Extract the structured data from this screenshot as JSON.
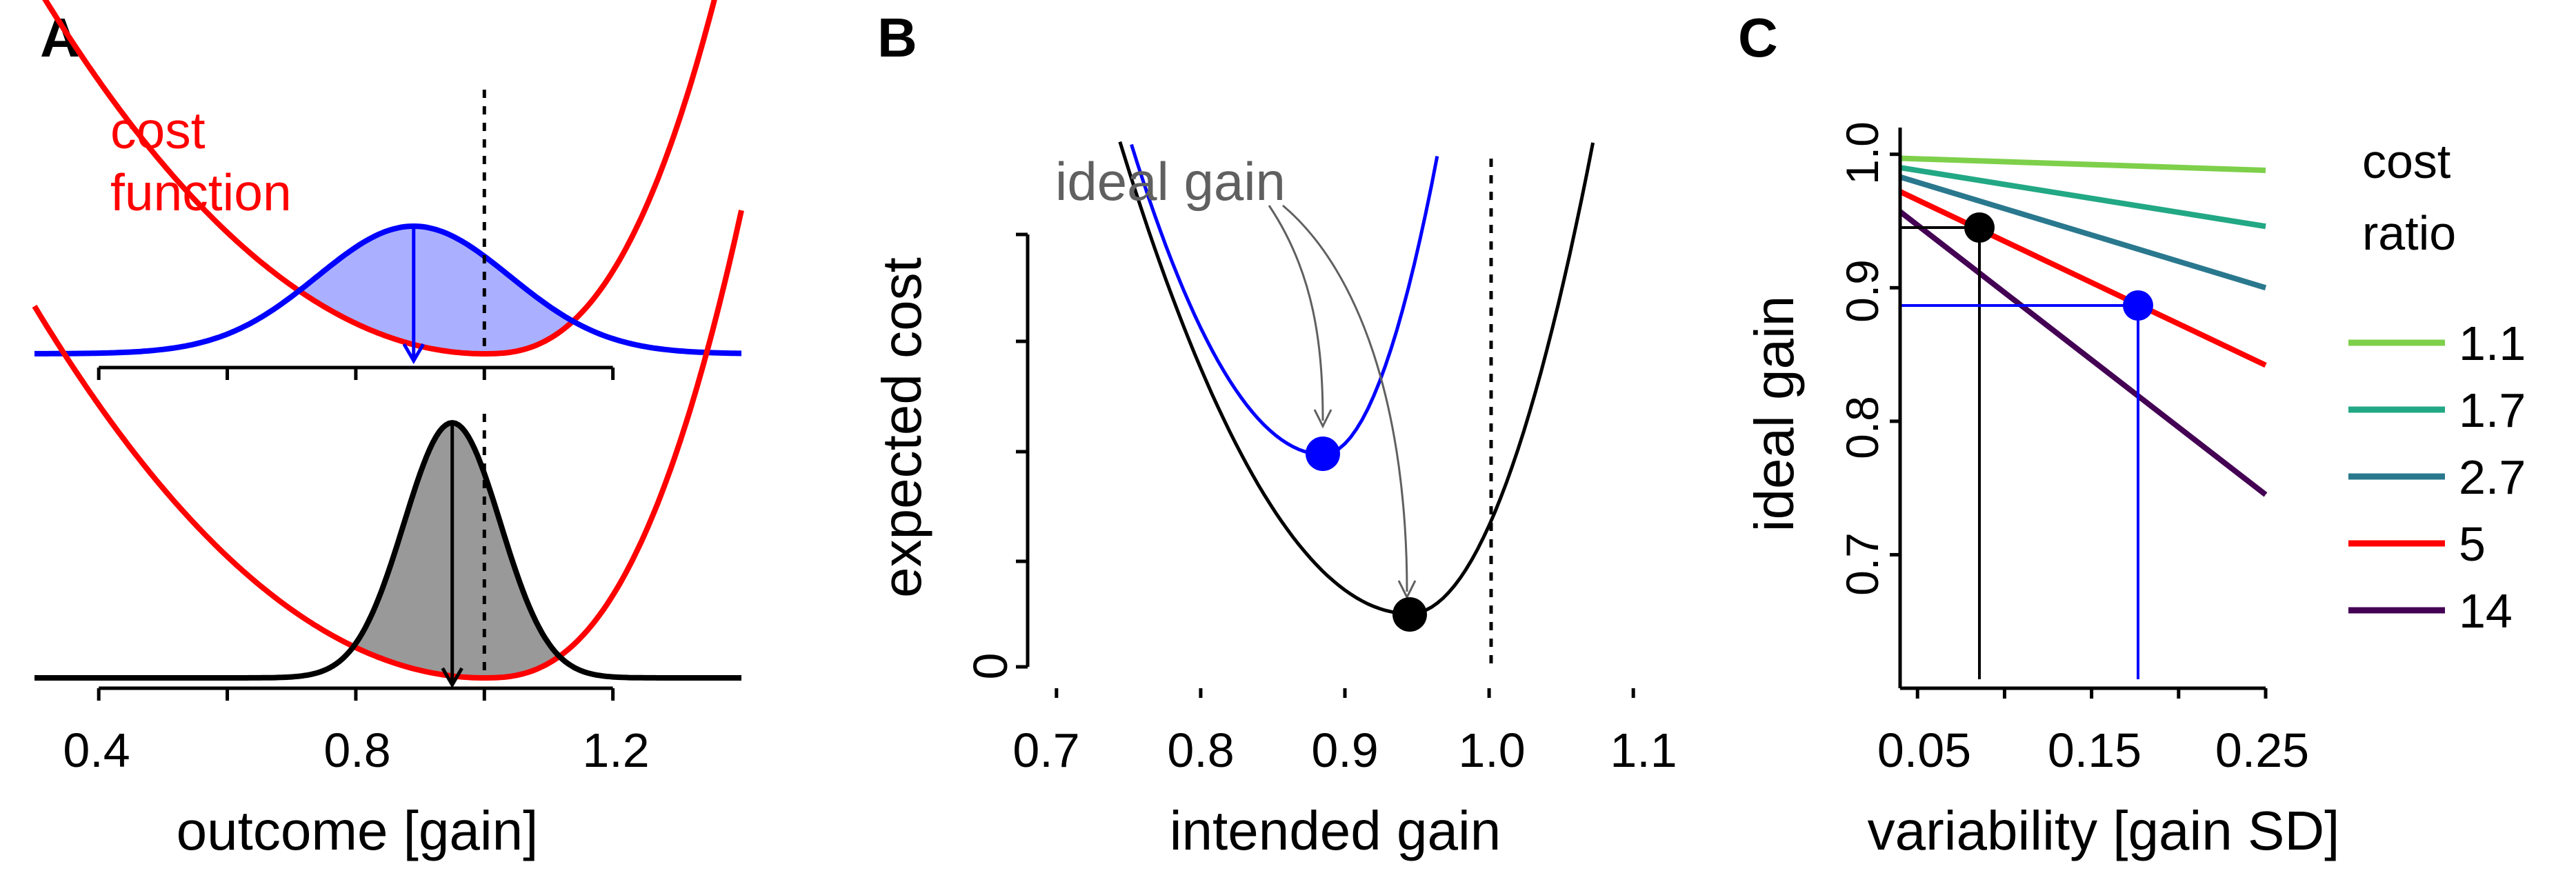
{
  "panels": {
    "A": {
      "label": "A",
      "cost_label_line1": "cost",
      "cost_label_line2": "function",
      "xlabel": "outcome [gain]",
      "xticks": [
        "0.4",
        "0.8",
        "1.2"
      ]
    },
    "B": {
      "label": "B",
      "annotation": "ideal gain",
      "ylabel": "expected cost",
      "xlabel": "intended gain",
      "yticks": [
        "0"
      ],
      "xticks": [
        "0.7",
        "0.8",
        "0.9",
        "1.0",
        "1.1"
      ]
    },
    "C": {
      "label": "C",
      "ylabel": "ideal gain",
      "xlabel": "variability [gain SD]",
      "yticks": [
        "0.7",
        "0.8",
        "0.9",
        "1.0"
      ],
      "xticks": [
        "0.05",
        "0.15",
        "0.25"
      ],
      "legend_title_line1": "cost",
      "legend_title_line2": "ratio",
      "legend": [
        {
          "label": "1.1",
          "color": "#7ed04b"
        },
        {
          "label": "1.7",
          "color": "#22a884"
        },
        {
          "label": "2.7",
          "color": "#2a788e"
        },
        {
          "label": "5",
          "color": "#ff0000"
        },
        {
          "label": "14",
          "color": "#440154"
        }
      ]
    }
  },
  "chart_data": [
    {
      "panel": "A",
      "type": "line",
      "xlabel": "outcome [gain]",
      "xlim": [
        0.3,
        1.4
      ],
      "reference_line_x": 1.0,
      "subplots": [
        {
          "position": "top",
          "distribution_color": "#0000ff",
          "fill_color": "#aab0ff",
          "distribution_mean": 0.89,
          "distribution_sd": 0.15
        },
        {
          "position": "bottom",
          "distribution_color": "#000000",
          "fill_color": "#999999",
          "distribution_mean": 0.95,
          "distribution_sd": 0.075
        }
      ],
      "cost_function_color": "#ff0000",
      "cost_function_min": 1.0
    },
    {
      "panel": "B",
      "type": "line",
      "xlabel": "intended gain",
      "ylabel": "expected cost",
      "xlim": [
        0.68,
        1.12
      ],
      "reference_line_x": 1.0,
      "series": [
        {
          "color": "#0000ff",
          "minimum": [
            0.885,
            0.4
          ]
        },
        {
          "color": "#000000",
          "minimum": [
            0.945,
            0.1
          ]
        }
      ]
    },
    {
      "panel": "C",
      "type": "line",
      "xlabel": "variability [gain SD]",
      "ylabel": "ideal gain",
      "xlim": [
        0.04,
        0.25
      ],
      "ylim": [
        0.6,
        1.02
      ],
      "series": [
        {
          "name": "1.1",
          "color": "#7ed04b",
          "x": [
            0.04,
            0.25
          ],
          "values": [
            0.997,
            0.988
          ]
        },
        {
          "name": "1.7",
          "color": "#22a884",
          "x": [
            0.04,
            0.25
          ],
          "values": [
            0.99,
            0.946
          ]
        },
        {
          "name": "2.7",
          "color": "#2a788e",
          "x": [
            0.04,
            0.25
          ],
          "values": [
            0.983,
            0.9
          ]
        },
        {
          "name": "5",
          "color": "#ff0000",
          "x": [
            0.04,
            0.25
          ],
          "values": [
            0.972,
            0.842
          ]
        },
        {
          "name": "14",
          "color": "#440154",
          "x": [
            0.04,
            0.25
          ],
          "values": [
            0.957,
            0.745
          ]
        }
      ],
      "highlight_points": [
        {
          "color": "#000000",
          "x": 0.09,
          "y": 0.944
        },
        {
          "color": "#0000ff",
          "x": 0.18,
          "y": 0.886
        }
      ]
    }
  ]
}
